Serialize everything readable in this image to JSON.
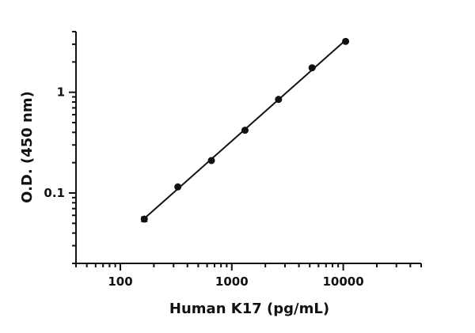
{
  "chart_data": {
    "type": "scatter",
    "xlabel": "Human K17 (pg/mL)",
    "ylabel": "O.D. (450 nm)",
    "xscale": "log",
    "yscale": "log",
    "xlim": [
      40,
      50000
    ],
    "ylim": [
      0.02,
      4
    ],
    "x_tick_labels": [
      "100",
      "1000",
      "10000"
    ],
    "y_tick_labels": [
      "0.1",
      "1"
    ],
    "grid": false,
    "legend": "none",
    "series": [
      {
        "x": [
          164,
          328,
          656,
          1313,
          2625,
          5250,
          10500
        ],
        "y": [
          0.055,
          0.115,
          0.21,
          0.42,
          0.85,
          1.75,
          3.2
        ],
        "y_err": [
          0.003,
          0.002,
          0.003,
          0.005,
          0.01,
          0.02,
          0.03
        ],
        "fit": "linear on log-log"
      }
    ],
    "color": "#111111"
  }
}
